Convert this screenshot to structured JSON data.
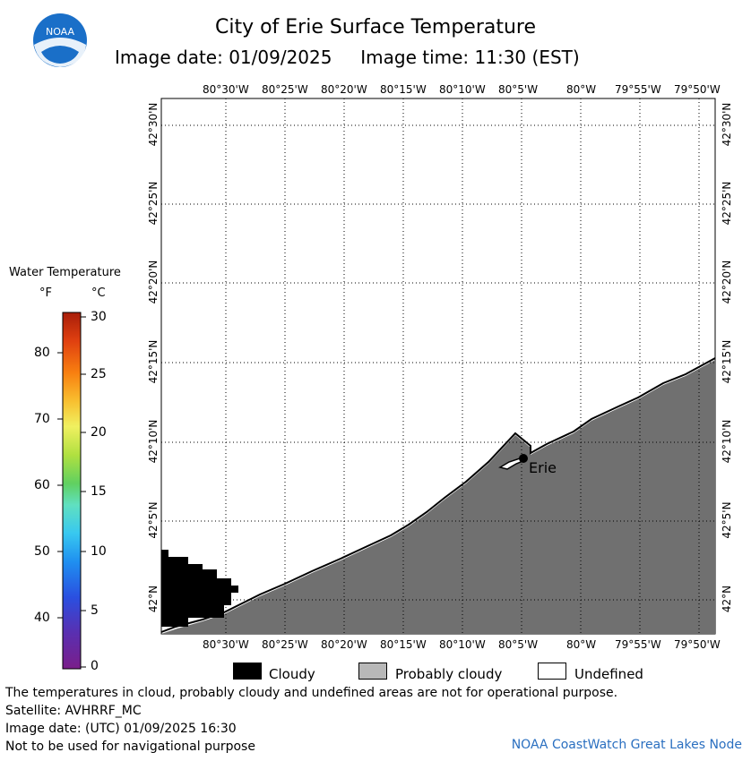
{
  "header": {
    "title": "City of Erie Surface Temperature",
    "subtitle": "Image date: 01/09/2025     Image time: 11:30 (EST)",
    "logo_text": "NOAA"
  },
  "map": {
    "longitude_labels": [
      "80°30'W",
      "80°25'W",
      "80°20'W",
      "80°15'W",
      "80°10'W",
      "80°5'W",
      "80°W",
      "79°55'W",
      "79°50'W"
    ],
    "latitude_labels": [
      "42°30'N",
      "42°25'N",
      "42°20'N",
      "42°15'N",
      "42°10'N",
      "42°5'N",
      "42°N"
    ],
    "city_label": "Erie",
    "colors": {
      "land": "#707070",
      "cloudy": "#000000",
      "water": "#ffffff",
      "grid": "#000000"
    }
  },
  "colorbar": {
    "title": "Water Temperature",
    "unit_f": "°F",
    "unit_c": "°C",
    "f_ticks": [
      "80",
      "70",
      "60",
      "50",
      "40"
    ],
    "c_ticks": [
      "30",
      "25",
      "20",
      "15",
      "10",
      "5",
      "0"
    ],
    "colors": [
      "#7a1e8a",
      "#5a2fb0",
      "#2a4fe0",
      "#1f8ff0",
      "#38c8f0",
      "#60e0c0",
      "#60d060",
      "#b0e040",
      "#f0f060",
      "#f8c030",
      "#f88010",
      "#e04010",
      "#a81e0a"
    ]
  },
  "legend": {
    "items": [
      {
        "label": "Cloudy",
        "color": "#000000"
      },
      {
        "label": "Probably cloudy",
        "color": "#b8b8b8"
      },
      {
        "label": "Undefined",
        "color": "#ffffff"
      }
    ]
  },
  "footer": {
    "line1": "The temperatures in cloud, probably cloudy and undefined areas are not for operational purpose.",
    "line2": "Satellite: AVHRRF_MC",
    "line3": "Image date: (UTC) 01/09/2025  16:30",
    "line4": "Not to be used for navigational purpose",
    "credit": "NOAA CoastWatch Great Lakes Node"
  }
}
